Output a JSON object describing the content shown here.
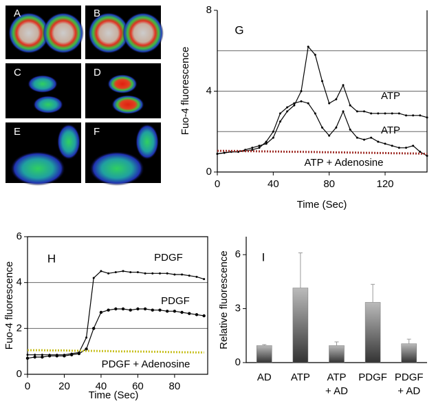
{
  "image_panels": {
    "labels": [
      "A",
      "B",
      "C",
      "D",
      "E",
      "F"
    ]
  },
  "chart_data": [
    {
      "type": "line",
      "panel": "G",
      "x_label": "Time (Sec)",
      "y_label": "Fuo-4 fluorescence",
      "x": [
        0,
        5,
        10,
        15,
        20,
        25,
        30,
        35,
        40,
        45,
        50,
        55,
        60,
        65,
        70,
        75,
        80,
        85,
        90,
        95,
        100,
        105,
        110,
        115,
        120,
        125,
        130,
        135,
        140,
        145,
        150
      ],
      "series": [
        {
          "color": "#000000",
          "values": [
            0.9,
            0.95,
            1.0,
            1.0,
            1.1,
            1.2,
            1.3,
            1.4,
            1.7,
            2.5,
            3.0,
            3.3,
            4.0,
            6.2,
            5.8,
            4.5,
            3.4,
            3.6,
            4.3,
            3.3,
            3.0,
            3.0,
            2.9,
            2.9,
            2.9,
            2.9,
            2.9,
            2.8,
            2.8,
            2.8,
            2.7
          ]
        },
        {
          "color": "#000000",
          "values": [
            0.9,
            0.95,
            1.0,
            1.0,
            1.05,
            1.1,
            1.2,
            1.5,
            2.0,
            2.9,
            3.2,
            3.4,
            3.5,
            3.4,
            2.9,
            2.2,
            1.8,
            2.2,
            3.0,
            2.1,
            1.7,
            1.6,
            1.7,
            1.5,
            1.4,
            1.3,
            1.2,
            1.2,
            1.3,
            1.0,
            0.8
          ]
        },
        {
          "color": "#a0302a",
          "values": [
            1.05,
            1.05,
            1.04,
            1.04,
            1.03,
            1.03,
            1.02,
            1.02,
            1.01,
            1.01,
            1.0,
            1.0,
            1.0,
            0.99,
            0.99,
            0.98,
            0.98,
            0.97,
            0.97,
            0.96,
            0.96,
            0.95,
            0.95,
            0.94,
            0.94,
            0.93,
            0.93,
            0.92,
            0.92,
            0.91,
            0.9
          ]
        }
      ],
      "annotations": [
        "ATP",
        "ATP",
        "ATP + Adenosine"
      ],
      "xlim": [
        0,
        150
      ],
      "xticks": [
        0,
        40,
        80,
        120
      ],
      "ylim": [
        0,
        8
      ],
      "yticks": [
        0,
        4,
        8
      ],
      "gridlines": [
        2,
        4,
        6
      ]
    },
    {
      "type": "line",
      "panel": "H",
      "x_label": "Time (Sec)",
      "y_label": "Fuo-4 fluorescence",
      "x": [
        0,
        4,
        8,
        12,
        16,
        20,
        24,
        28,
        32,
        36,
        40,
        44,
        48,
        52,
        56,
        60,
        64,
        68,
        72,
        76,
        80,
        84,
        88,
        92,
        96
      ],
      "series": [
        {
          "color": "#000000",
          "values": [
            0.85,
            0.85,
            0.85,
            0.85,
            0.85,
            0.85,
            0.9,
            0.95,
            1.6,
            4.2,
            4.5,
            4.4,
            4.45,
            4.5,
            4.45,
            4.45,
            4.4,
            4.4,
            4.4,
            4.4,
            4.35,
            4.35,
            4.3,
            4.25,
            4.15
          ]
        },
        {
          "color": "#000000",
          "values": [
            0.7,
            0.75,
            0.75,
            0.8,
            0.8,
            0.8,
            0.85,
            0.9,
            1.1,
            2.0,
            2.7,
            2.8,
            2.85,
            2.85,
            2.8,
            2.85,
            2.85,
            2.8,
            2.8,
            2.75,
            2.75,
            2.7,
            2.65,
            2.6,
            2.55
          ]
        },
        {
          "color": "#c8c020",
          "values": [
            1.05,
            1.05,
            1.05,
            1.04,
            1.04,
            1.04,
            1.03,
            1.03,
            1.02,
            1.02,
            1.01,
            1.01,
            1.0,
            1.0,
            1.0,
            0.99,
            0.99,
            0.98,
            0.98,
            0.97,
            0.97,
            0.96,
            0.96,
            0.95,
            0.95
          ]
        }
      ],
      "annotations": [
        "PDGF",
        "PDGF",
        "PDGF + Adenosine"
      ],
      "xlim": [
        0,
        98
      ],
      "xticks": [
        0,
        20,
        40,
        60,
        80
      ],
      "ylim": [
        0,
        6
      ],
      "yticks": [
        0,
        2,
        4,
        6
      ],
      "gridlines": [
        2,
        4
      ]
    },
    {
      "type": "bar",
      "panel": "I",
      "y_label": "Relative fluorescence",
      "categories": [
        [
          "AD"
        ],
        [
          "ATP"
        ],
        [
          "ATP",
          "+ AD"
        ],
        [
          "PDGF"
        ],
        [
          "PDGF",
          "+ AD"
        ]
      ],
      "values": [
        0.95,
        4.15,
        0.95,
        3.35,
        1.05
      ],
      "errors": [
        0.05,
        1.95,
        0.2,
        1.0,
        0.25
      ],
      "color": "#777777",
      "ylim": [
        0,
        7
      ],
      "yticks": [
        0,
        3,
        6
      ]
    }
  ]
}
